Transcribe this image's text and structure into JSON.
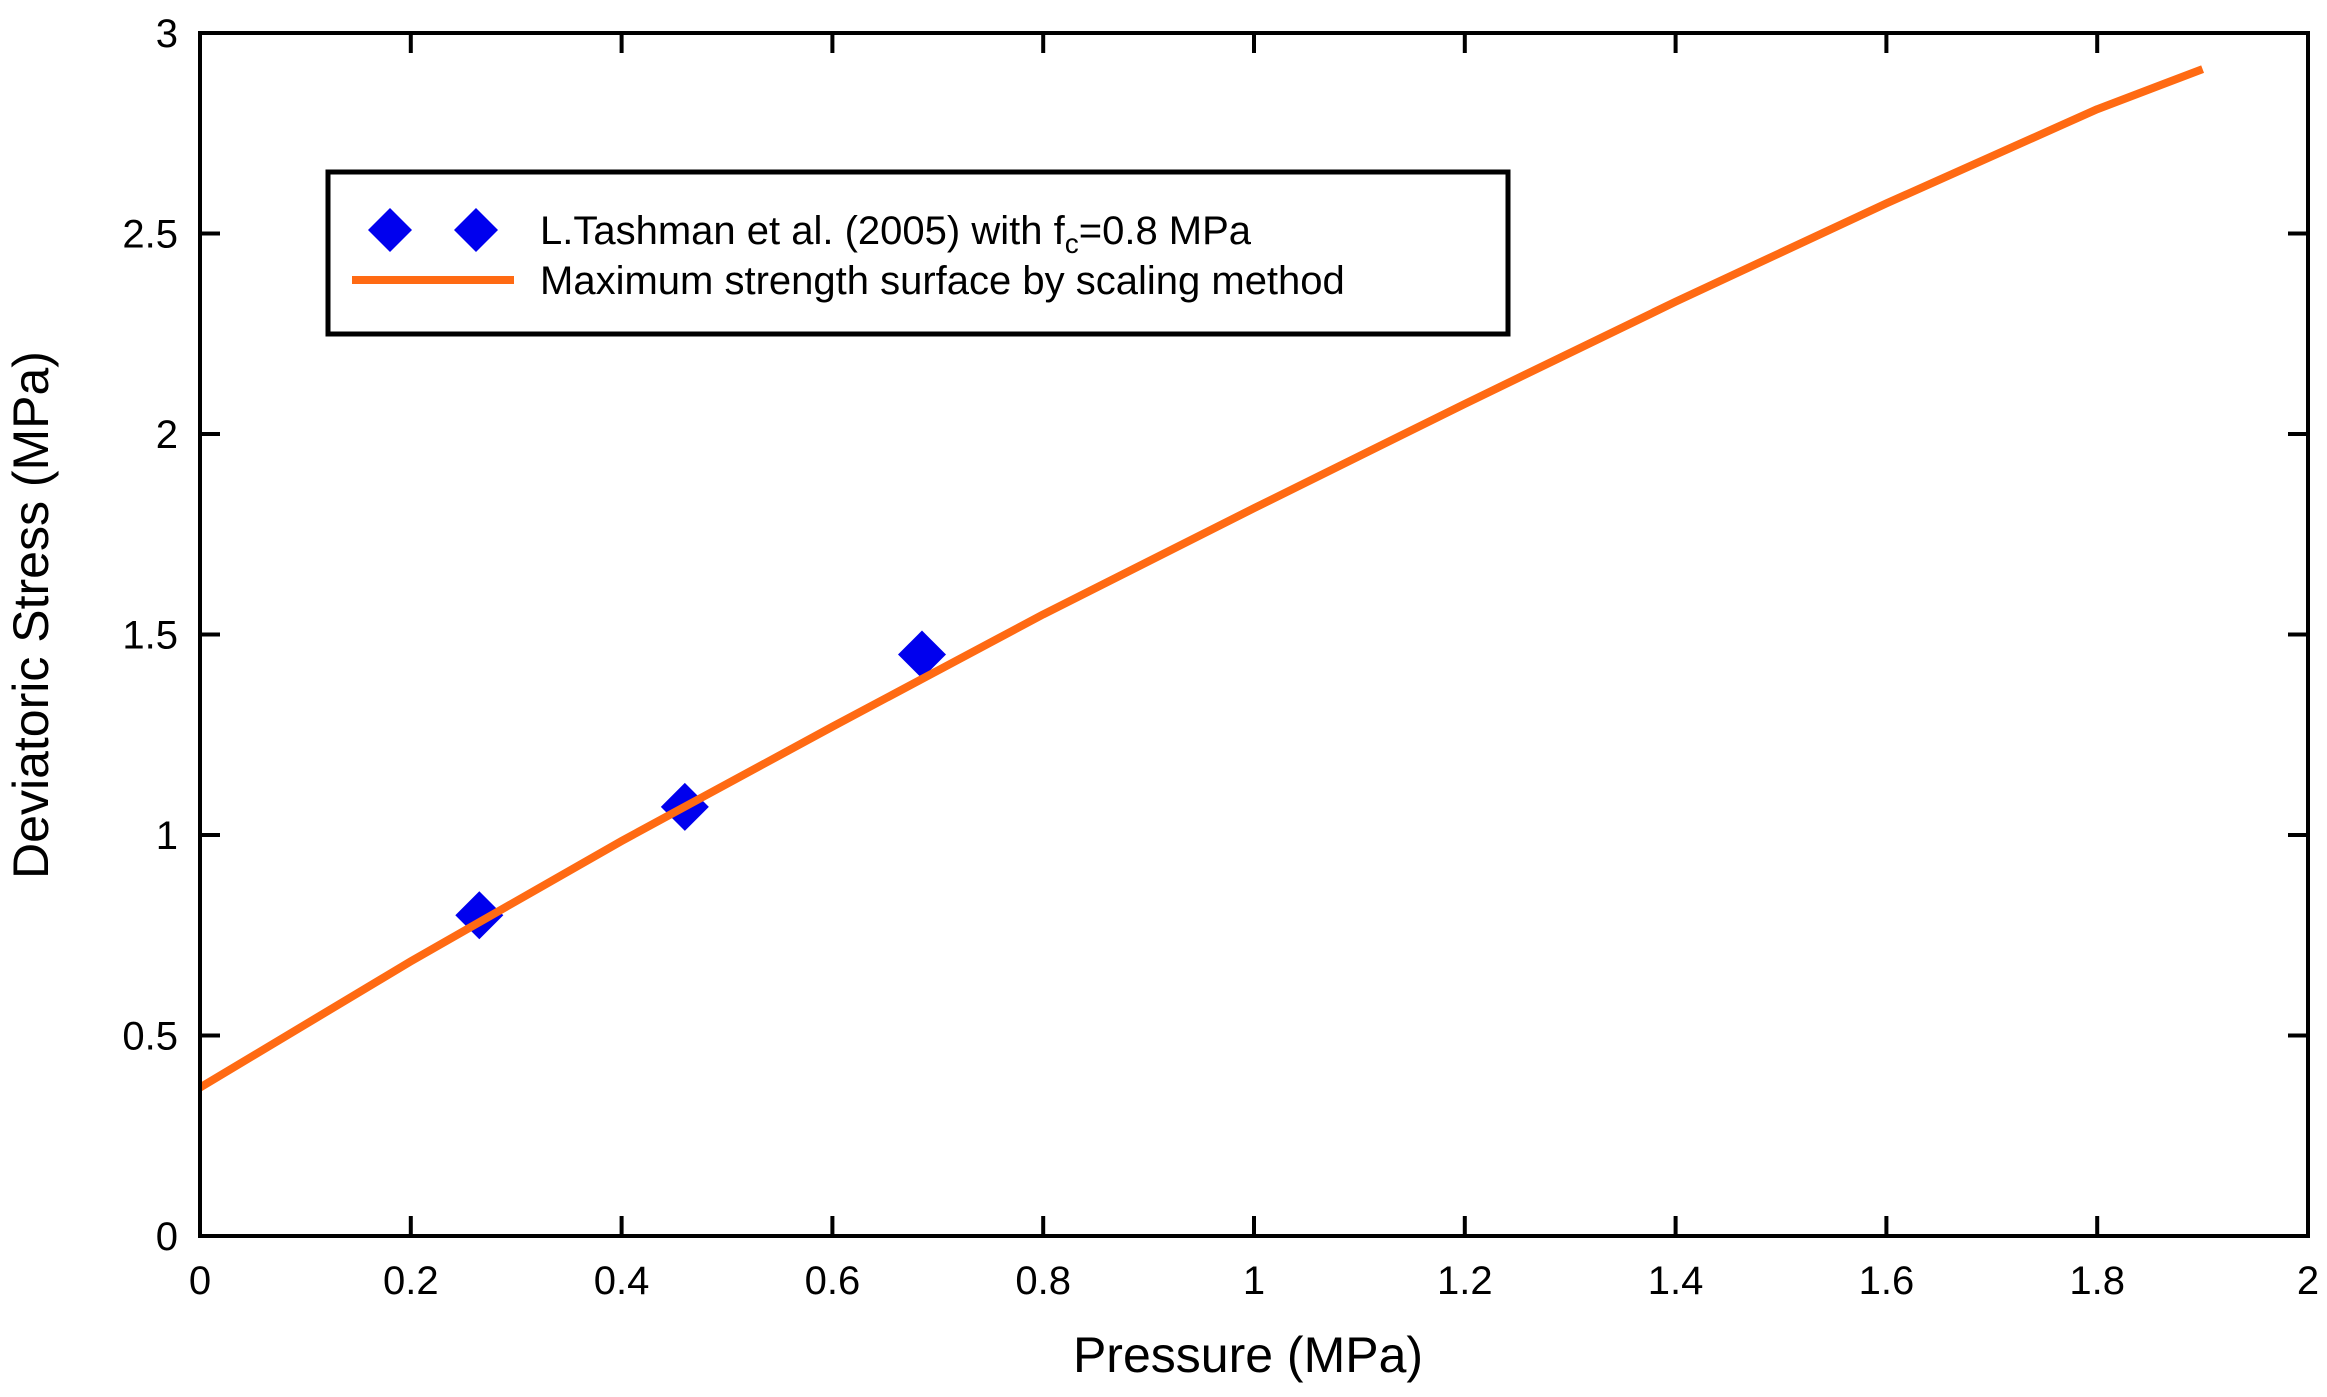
{
  "chart_data": {
    "type": "scatter",
    "title": "",
    "xlabel": "Pressure (MPa)",
    "ylabel": "Deviatoric Stress (MPa)",
    "xlim": [
      0,
      2
    ],
    "ylim": [
      0,
      3
    ],
    "xticks": [
      "0",
      "0.2",
      "0.4",
      "0.6",
      "0.8",
      "1",
      "1.2",
      "1.4",
      "1.6",
      "1.8",
      "2"
    ],
    "yticks": [
      "0",
      "0.5",
      "1",
      "1.5",
      "2",
      "2.5",
      "3"
    ],
    "grid": false,
    "legend_position": "top-left",
    "series": [
      {
        "name": "L.Tashman et al. (2005) with fc=0.8 MPa",
        "legend_main": "L.Tashman et al. (2005) with f",
        "legend_sub": "c",
        "legend_tail": "=0.8 MPa",
        "kind": "markers",
        "marker": "diamond",
        "color": "#0000ee",
        "x": [
          0.265,
          0.46,
          0.685
        ],
        "y": [
          0.8,
          1.07,
          1.45
        ]
      },
      {
        "name": "Maximum strength surface by scaling method",
        "kind": "line",
        "color": "#ff6a13",
        "x": [
          0,
          0.2,
          0.4,
          0.6,
          0.8,
          1.0,
          1.2,
          1.4,
          1.6,
          1.8,
          1.9
        ],
        "y": [
          0.37,
          0.685,
          0.985,
          1.27,
          1.55,
          1.815,
          2.075,
          2.33,
          2.575,
          2.81,
          2.91
        ]
      }
    ]
  }
}
